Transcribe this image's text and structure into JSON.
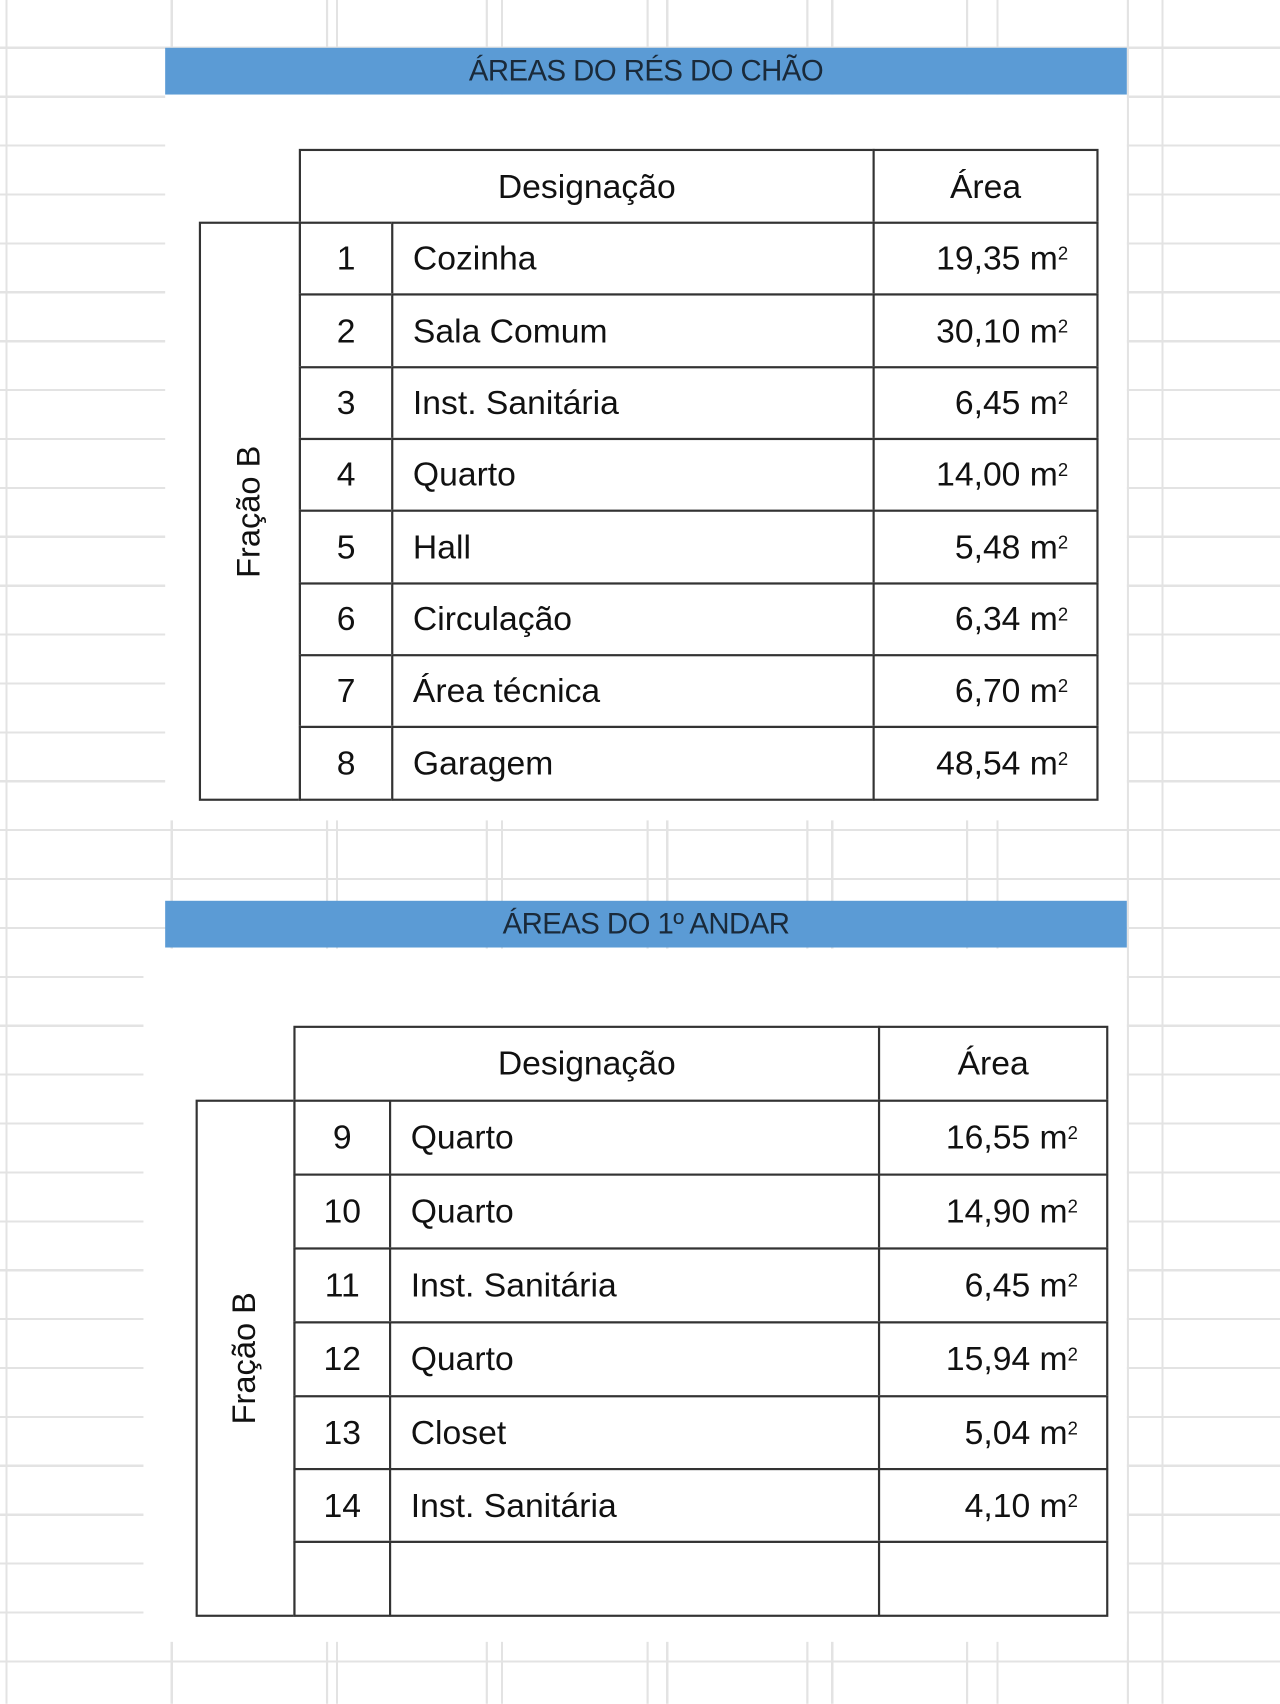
{
  "sections": [
    {
      "title": "ÁREAS DO RÉS DO CHÃO",
      "header": {
        "designation": "Designação",
        "area": "Área"
      },
      "group_label": "Fração B",
      "rows": [
        {
          "n": "1",
          "name": "Cozinha",
          "area": "19,35 m",
          "unit_sup": "2"
        },
        {
          "n": "2",
          "name": "Sala Comum",
          "area": "30,10 m",
          "unit_sup": "2"
        },
        {
          "n": "3",
          "name": "Inst. Sanitária",
          "area": "6,45 m",
          "unit_sup": "2"
        },
        {
          "n": "4",
          "name": "Quarto",
          "area": "14,00 m",
          "unit_sup": "2"
        },
        {
          "n": "5",
          "name": "Hall",
          "area": "5,48 m",
          "unit_sup": "2"
        },
        {
          "n": "6",
          "name": "Circulação",
          "area": "6,34 m",
          "unit_sup": "2"
        },
        {
          "n": "7",
          "name": "Área técnica",
          "area": "6,70 m",
          "unit_sup": "2"
        },
        {
          "n": "8",
          "name": "Garagem",
          "area": "48,54 m",
          "unit_sup": "2"
        }
      ]
    },
    {
      "title": "ÁREAS DO 1º ANDAR",
      "header": {
        "designation": "Designação",
        "area": "Área"
      },
      "group_label": "Fração B",
      "rows": [
        {
          "n": "9",
          "name": "Quarto",
          "area": "16,55 m",
          "unit_sup": "2"
        },
        {
          "n": "10",
          "name": "Quarto",
          "area": "14,90 m",
          "unit_sup": "2"
        },
        {
          "n": "11",
          "name": "Inst. Sanitária",
          "area": "6,45 m",
          "unit_sup": "2"
        },
        {
          "n": "12",
          "name": "Quarto",
          "area": "15,94 m",
          "unit_sup": "2"
        },
        {
          "n": "13",
          "name": "Closet",
          "area": "5,04 m",
          "unit_sup": "2"
        },
        {
          "n": "14",
          "name": "Inst. Sanitária",
          "area": "4,10 m",
          "unit_sup": "2"
        },
        {
          "n": "",
          "name": "",
          "area": "",
          "unit_sup": ""
        }
      ]
    }
  ]
}
